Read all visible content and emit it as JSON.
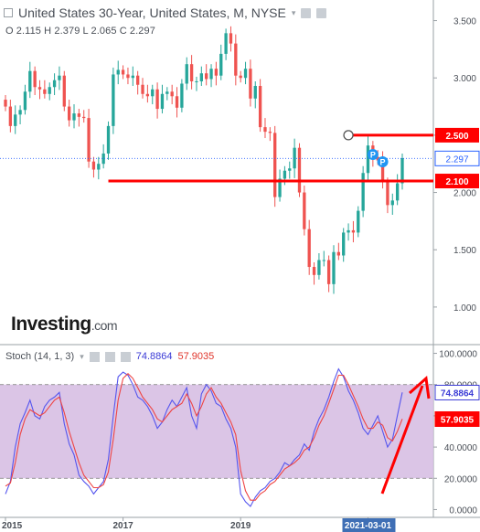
{
  "header": {
    "title": "United States 30-Year, United States, M, NYSE",
    "ohlc": "O 2.115  H 2.379  L 2.065  C 2.297"
  },
  "logo": {
    "main": "Investing",
    "suffix": ".com"
  },
  "stoch": {
    "label": "Stoch (14, 1, 3)",
    "k_value": "74.8864",
    "d_value": "57.9035"
  },
  "colors": {
    "up": "#26a69a",
    "down": "#ef5350",
    "line_red": "#ff0000",
    "stoch_k": "#5555ee",
    "stoch_d": "#ee4444",
    "band_fill": "#d7bfe3",
    "current_price": "#2962ff"
  },
  "chart_data": [
    {
      "type": "candlestick",
      "interval": "monthly",
      "x": [
        "2015",
        "2015",
        "2015",
        "2015",
        "2015",
        "2015",
        "2015",
        "2015",
        "2015",
        "2015",
        "2015",
        "2015",
        "2016",
        "2016",
        "2016",
        "2016",
        "2016",
        "2016",
        "2016",
        "2016",
        "2016",
        "2016",
        "2016",
        "2016",
        "2017",
        "2017",
        "2017",
        "2017",
        "2017",
        "2017",
        "2017",
        "2017",
        "2017",
        "2017",
        "2017",
        "2017",
        "2018",
        "2018",
        "2018",
        "2018",
        "2018",
        "2018",
        "2018",
        "2018",
        "2018",
        "2018",
        "2018",
        "2018",
        "2019",
        "2019",
        "2019",
        "2019",
        "2019",
        "2019",
        "2019",
        "2019",
        "2019",
        "2019",
        "2019",
        "2019",
        "2020",
        "2020",
        "2020",
        "2020",
        "2020",
        "2020",
        "2020",
        "2020",
        "2020",
        "2020",
        "2020",
        "2020",
        "2021",
        "2021",
        "2021",
        "2021",
        "2021",
        "2021",
        "2021",
        "2021",
        "2021",
        "2021"
      ],
      "x_ticks": [
        "2015",
        "2017",
        "2019",
        "2021-03-01"
      ],
      "close": [
        2.75,
        2.58,
        2.68,
        2.72,
        2.88,
        3.06,
        2.92,
        2.9,
        2.86,
        2.92,
        2.98,
        3.02,
        2.75,
        2.63,
        2.69,
        2.66,
        2.65,
        2.27,
        2.2,
        2.25,
        2.34,
        2.58,
        3.03,
        3.07,
        3.03,
        3.0,
        3.02,
        2.94,
        2.86,
        2.84,
        2.9,
        2.73,
        2.86,
        2.88,
        2.84,
        2.74,
        2.95,
        3.12,
        2.97,
        2.97,
        3.04,
        2.99,
        3.08,
        3.02,
        3.21,
        3.39,
        3.3,
        3.02,
        3.0,
        3.08,
        2.82,
        2.93,
        2.57,
        2.53,
        2.52,
        1.96,
        2.12,
        2.19,
        2.21,
        2.39,
        2.0,
        1.68,
        1.35,
        1.28,
        1.41,
        1.41,
        1.2,
        1.48,
        1.45,
        1.65,
        1.67,
        1.65,
        1.84,
        2.17,
        2.41,
        2.31,
        2.28,
        2.09,
        1.89,
        1.93,
        2.08,
        2.3
      ],
      "current_price": 2.297,
      "open": 2.115,
      "high": 2.379,
      "low": 2.065,
      "horizontal_lines": [
        2.5,
        2.1
      ],
      "markers": [
        "P",
        "P"
      ],
      "y_ticks": [
        1.0,
        1.5,
        2.0,
        2.5,
        3.0,
        3.5
      ],
      "ylim": [
        0.68,
        3.68
      ]
    },
    {
      "type": "line",
      "title": "Stoch (14, 1, 3)",
      "y_ticks": [
        0,
        20,
        40,
        60,
        80,
        100
      ],
      "band": [
        20,
        80
      ],
      "ylim": [
        -5,
        105
      ],
      "series": [
        {
          "name": "74.8864",
          "values": [
            10,
            18,
            40,
            55,
            62,
            70,
            60,
            58,
            66,
            70,
            72,
            75,
            55,
            42,
            35,
            22,
            18,
            15,
            10,
            14,
            18,
            32,
            60,
            85,
            88,
            86,
            80,
            72,
            70,
            66,
            60,
            52,
            56,
            64,
            70,
            66,
            72,
            78,
            60,
            52,
            74,
            80,
            76,
            68,
            66,
            58,
            52,
            40,
            10,
            5,
            2,
            8,
            12,
            14,
            18,
            20,
            24,
            30,
            28,
            32,
            35,
            42,
            38,
            50,
            58,
            64,
            72,
            82,
            90,
            85,
            76,
            70,
            62,
            52,
            48,
            54,
            60,
            50,
            40,
            45,
            60,
            75
          ]
        },
        {
          "name": "57.9035",
          "values": [
            15,
            17,
            30,
            48,
            58,
            64,
            62,
            60,
            62,
            66,
            70,
            72,
            62,
            50,
            40,
            30,
            22,
            18,
            14,
            14,
            16,
            24,
            45,
            70,
            84,
            87,
            84,
            78,
            72,
            68,
            64,
            58,
            56,
            60,
            64,
            66,
            68,
            74,
            68,
            60,
            66,
            74,
            78,
            72,
            68,
            62,
            56,
            48,
            25,
            12,
            6,
            6,
            10,
            12,
            16,
            18,
            22,
            26,
            28,
            30,
            33,
            38,
            40,
            46,
            54,
            60,
            68,
            77,
            86,
            86,
            80,
            73,
            66,
            58,
            52,
            52,
            56,
            54,
            46,
            44,
            50,
            58
          ]
        }
      ]
    }
  ]
}
